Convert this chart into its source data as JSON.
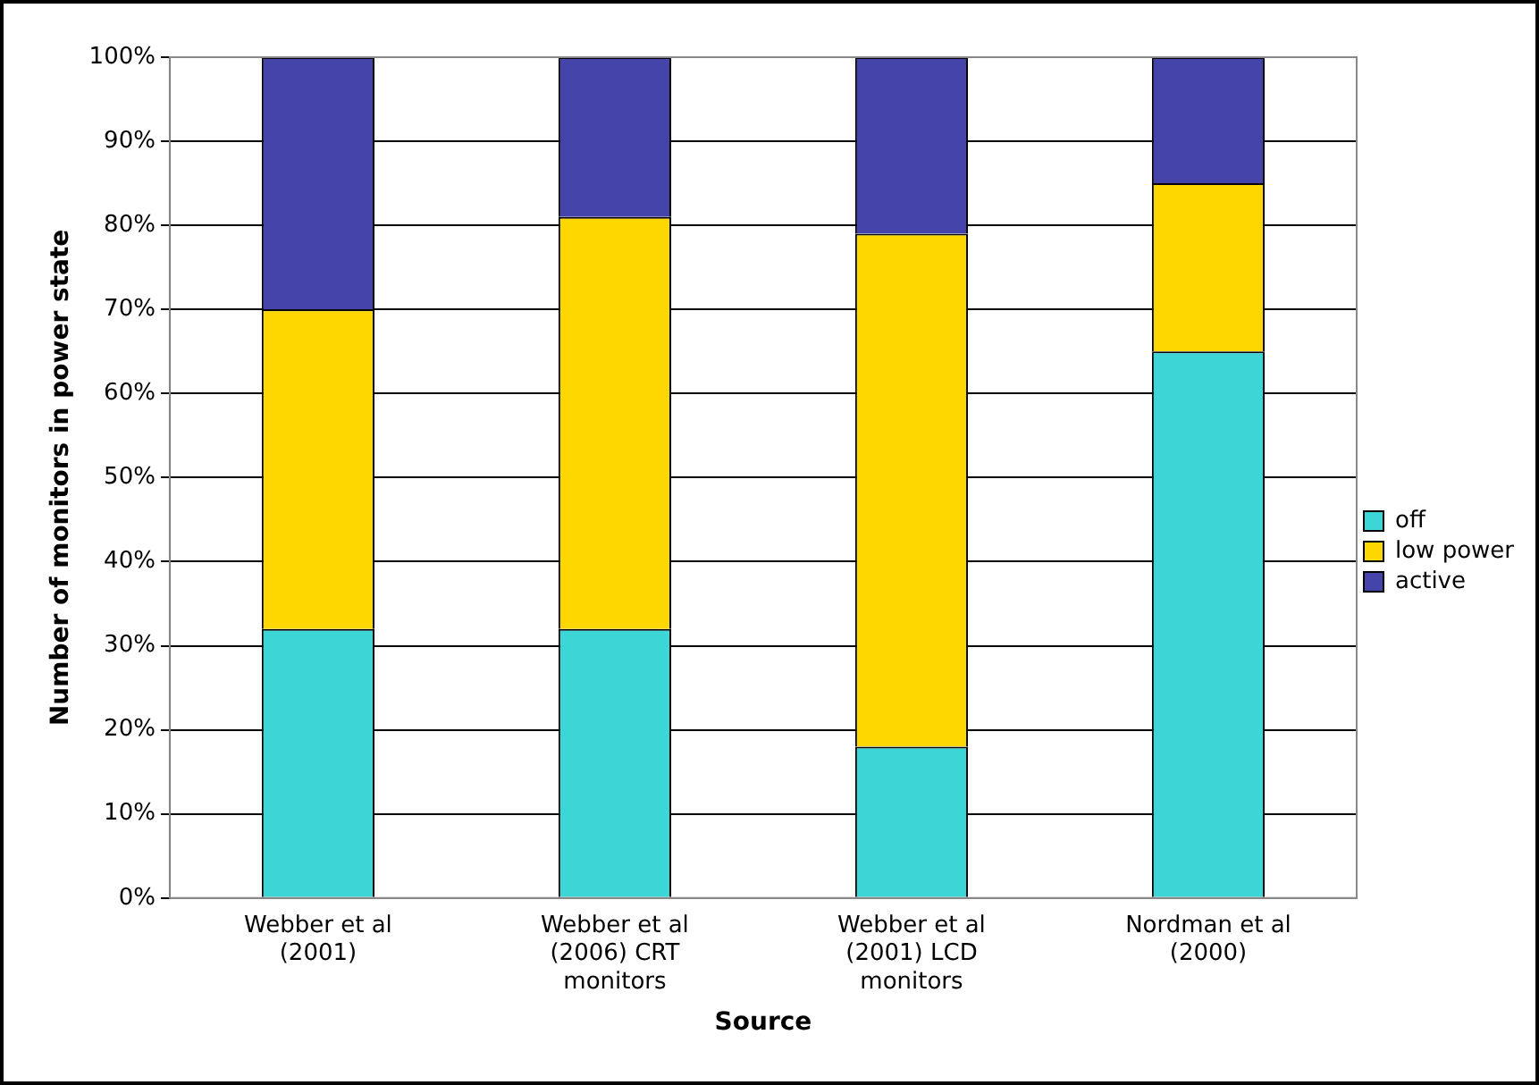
{
  "chart_data": {
    "type": "bar",
    "stacked": true,
    "xlabel": "Source",
    "ylabel": "Number of monitors in power state",
    "categories": [
      "Webber et al (2001)",
      "Webber et al (2006) CRT monitors",
      "Webber et al (2001) LCD monitors",
      "Nordman et al (2000)"
    ],
    "series": [
      {
        "name": "off",
        "color": "#3dd6d6",
        "values": [
          32,
          32,
          18,
          65
        ]
      },
      {
        "name": "low power",
        "color": "#ffd700",
        "values": [
          38,
          49,
          61,
          20
        ]
      },
      {
        "name": "active",
        "color": "#4444aa",
        "values": [
          30,
          19,
          21,
          15
        ]
      }
    ],
    "ylim": [
      0,
      100
    ],
    "yticks": [
      {
        "value": 0,
        "label": "0%"
      },
      {
        "value": 10,
        "label": "10%"
      },
      {
        "value": 20,
        "label": "20%"
      },
      {
        "value": 30,
        "label": "30%"
      },
      {
        "value": 40,
        "label": "40%"
      },
      {
        "value": 50,
        "label": "50%"
      },
      {
        "value": 60,
        "label": "60%"
      },
      {
        "value": 70,
        "label": "70%"
      },
      {
        "value": 80,
        "label": "80%"
      },
      {
        "value": 90,
        "label": "90%"
      },
      {
        "value": 100,
        "label": "100%"
      }
    ],
    "grid": "y",
    "legend": "right"
  }
}
